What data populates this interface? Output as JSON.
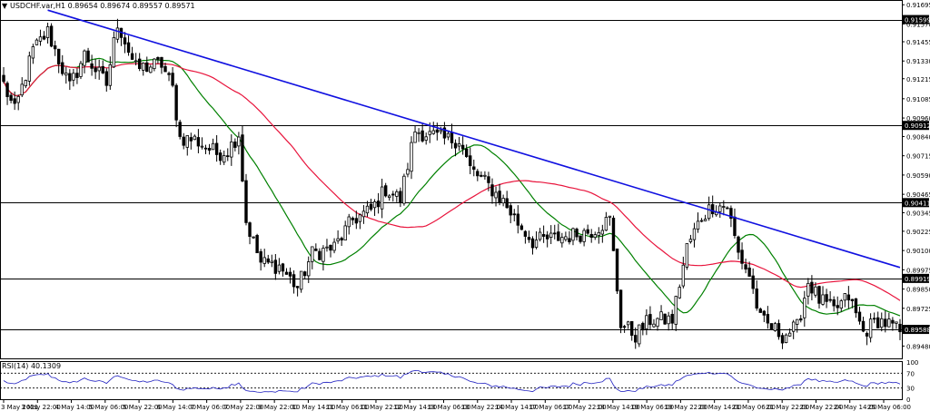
{
  "header": {
    "arrow": "▼",
    "text": "USDCHF.var,H1  0.89654 0.89674 0.89557 0.89571"
  },
  "rsi": {
    "label": "RSI(14) 40.1309",
    "levels": [
      70,
      30
    ],
    "scale_labels": [
      "100",
      "70",
      "30",
      "0"
    ]
  },
  "chart_data": {
    "type": "candlestick",
    "symbol": "USDCHF.var",
    "timeframe": "H1",
    "ylim": [
      0.894,
      0.9172
    ],
    "price_ticks": [
      "0.91695",
      "0.91570",
      "0.91455",
      "0.91330",
      "0.91215",
      "0.91085",
      "0.90960",
      "0.90840",
      "0.90715",
      "0.90590",
      "0.90465",
      "0.90345",
      "0.90225",
      "0.90100",
      "0.89975",
      "0.89850",
      "0.89725",
      "0.89605",
      "0.89480"
    ],
    "current_price": "0.89588",
    "x_labels": [
      "3 May 2021",
      "3 May 22:00",
      "4 May 14:00",
      "5 May 06:00",
      "5 May 22:00",
      "6 May 14:00",
      "7 May 06:00",
      "7 May 22:00",
      "9 May 22:00",
      "10 May 14:00",
      "11 May 06:00",
      "11 May 22:00",
      "12 May 14:00",
      "13 May 06:00",
      "13 May 22:00",
      "14 May 14:00",
      "17 May 06:00",
      "17 May 22:00",
      "18 May 14:00",
      "19 May 06:00",
      "19 May 22:00",
      "20 May 14:00",
      "21 May 06:00",
      "21 May 22:00",
      "23 May 22:00",
      "24 May 14:00",
      "25 May 06:00"
    ],
    "horizontal_levels": [
      "0.91599",
      "0.90912",
      "0.90411",
      "0.89919",
      "0.89588"
    ],
    "trendline": {
      "start_index": 12,
      "start_price": 0.9166,
      "end_index": 244,
      "end_price": 0.8999
    },
    "key_points": [
      {
        "index": 0,
        "price": 0.9118
      },
      {
        "index": 3,
        "price": 0.91
      },
      {
        "index": 8,
        "price": 0.914
      },
      {
        "index": 12,
        "price": 0.9152
      },
      {
        "index": 18,
        "price": 0.9116
      },
      {
        "index": 22,
        "price": 0.9137
      },
      {
        "index": 28,
        "price": 0.9118
      },
      {
        "index": 31,
        "price": 0.9158
      },
      {
        "index": 36,
        "price": 0.9128
      },
      {
        "index": 43,
        "price": 0.9131
      },
      {
        "index": 46,
        "price": 0.9115
      },
      {
        "index": 48,
        "price": 0.9083
      },
      {
        "index": 52,
        "price": 0.9082
      },
      {
        "index": 58,
        "price": 0.9073
      },
      {
        "index": 61,
        "price": 0.9075
      },
      {
        "index": 64,
        "price": 0.9086
      },
      {
        "index": 66,
        "price": 0.9029
      },
      {
        "index": 70,
        "price": 0.9002
      },
      {
        "index": 75,
        "price": 0.9
      },
      {
        "index": 80,
        "price": 0.8986
      },
      {
        "index": 84,
        "price": 0.9008
      },
      {
        "index": 90,
        "price": 0.9012
      },
      {
        "index": 95,
        "price": 0.903
      },
      {
        "index": 100,
        "price": 0.9036
      },
      {
        "index": 104,
        "price": 0.905
      },
      {
        "index": 108,
        "price": 0.9043
      },
      {
        "index": 112,
        "price": 0.9088
      },
      {
        "index": 120,
        "price": 0.9082
      },
      {
        "index": 124,
        "price": 0.9082
      },
      {
        "index": 127,
        "price": 0.9063
      },
      {
        "index": 132,
        "price": 0.9052
      },
      {
        "index": 136,
        "price": 0.9042
      },
      {
        "index": 140,
        "price": 0.9028
      },
      {
        "index": 144,
        "price": 0.9016
      },
      {
        "index": 150,
        "price": 0.9018
      },
      {
        "index": 155,
        "price": 0.902
      },
      {
        "index": 160,
        "price": 0.9023
      },
      {
        "index": 165,
        "price": 0.903
      },
      {
        "index": 168,
        "price": 0.8963
      },
      {
        "index": 172,
        "price": 0.8955
      },
      {
        "index": 176,
        "price": 0.8965
      },
      {
        "index": 182,
        "price": 0.8965
      },
      {
        "index": 186,
        "price": 0.9012
      },
      {
        "index": 190,
        "price": 0.9032
      },
      {
        "index": 193,
        "price": 0.9039
      },
      {
        "index": 197,
        "price": 0.9039
      },
      {
        "index": 200,
        "price": 0.9008
      },
      {
        "index": 203,
        "price": 0.8994
      },
      {
        "index": 206,
        "price": 0.8965
      },
      {
        "index": 212,
        "price": 0.8955
      },
      {
        "index": 216,
        "price": 0.896
      },
      {
        "index": 219,
        "price": 0.899
      },
      {
        "index": 222,
        "price": 0.8978
      },
      {
        "index": 226,
        "price": 0.8971
      },
      {
        "index": 230,
        "price": 0.898
      },
      {
        "index": 234,
        "price": 0.8957
      },
      {
        "index": 238,
        "price": 0.8965
      },
      {
        "index": 241,
        "price": 0.8962
      },
      {
        "index": 244,
        "price": 0.8957
      }
    ],
    "moving_averages": [
      {
        "color": "#008000",
        "period": 20
      },
      {
        "color": "#e8143c",
        "period": 50
      }
    ],
    "colors": {
      "candle": "#000000",
      "trendline": "#1010e0",
      "levels": "#000000",
      "rsi": "#2020c0",
      "grid": "#000000"
    }
  }
}
